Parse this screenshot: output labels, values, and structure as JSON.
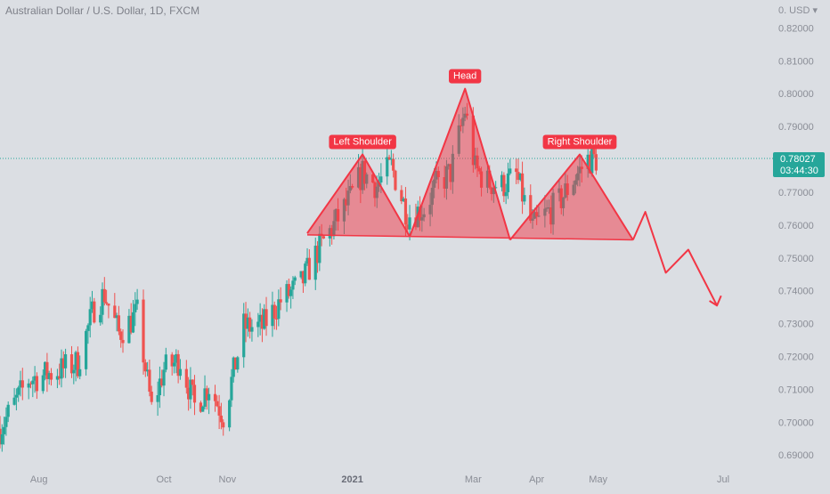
{
  "header": {
    "symbol_title": "Australian Dollar / U.S. Dollar, 1D, FXCM",
    "currency": "0. USD ▾"
  },
  "annotations": {
    "left_shoulder": "Left Shoulder",
    "head": "Head",
    "right_shoulder": "Right Shoulder"
  },
  "price_tag": {
    "price": "0.78027",
    "countdown": "03:44:30"
  },
  "colors": {
    "background": "#dbdee3",
    "up_candle": "#26a69a",
    "down_candle": "#ef5350",
    "pattern_red": "#f23645",
    "pattern_fill": "rgba(242,54,69,0.5)",
    "axis_text": "#8a8d96",
    "price_line": "#26a69a"
  },
  "chart_data": {
    "type": "candlestick",
    "title": "Australian Dollar / U.S. Dollar, 1D, FXCM",
    "ylim": [
      0.686,
      0.8285
    ],
    "y_ticks": [
      "0.82000",
      "0.81000",
      "0.80000",
      "0.79000",
      "0.78000",
      "0.77000",
      "0.76000",
      "0.75000",
      "0.74000",
      "0.73000",
      "0.72000",
      "0.71000",
      "0.70000",
      "0.69000"
    ],
    "x_ticks": [
      {
        "date": "2020-08-01",
        "label": "Aug"
      },
      {
        "date": "2020-10-01",
        "label": "Oct"
      },
      {
        "date": "2020-11-01",
        "label": "Nov"
      },
      {
        "date": "2021-01-01",
        "label": "2021"
      },
      {
        "date": "2021-03-01",
        "label": "Mar"
      },
      {
        "date": "2021-04-01",
        "label": "Apr"
      },
      {
        "date": "2021-05-01",
        "label": "May"
      },
      {
        "date": "2021-07-01",
        "label": "Jul"
      }
    ],
    "x_range": [
      "2020-07-13",
      "2021-07-21"
    ],
    "grid": false,
    "last_price": 0.78027,
    "price_trend": [
      [
        "2020-07-13",
        0.698
      ],
      [
        "2020-07-27",
        0.713
      ],
      [
        "2020-08-02",
        0.714
      ],
      [
        "2020-08-12",
        0.716
      ],
      [
        "2020-08-20",
        0.718
      ],
      [
        "2020-08-28",
        0.735
      ],
      [
        "2020-09-02",
        0.739
      ],
      [
        "2020-09-09",
        0.727
      ],
      [
        "2020-09-18",
        0.733
      ],
      [
        "2020-09-25",
        0.704
      ],
      [
        "2020-10-01",
        0.716
      ],
      [
        "2020-10-09",
        0.719
      ],
      [
        "2020-10-16",
        0.705
      ],
      [
        "2020-10-23",
        0.711
      ],
      [
        "2020-10-30",
        0.702
      ],
      [
        "2020-11-04",
        0.715
      ],
      [
        "2020-11-09",
        0.729
      ],
      [
        "2020-11-18",
        0.729
      ],
      [
        "2020-11-27",
        0.737
      ],
      [
        "2020-12-07",
        0.742
      ],
      [
        "2020-12-15",
        0.752
      ],
      [
        "2020-12-23",
        0.76
      ],
      [
        "2020-12-31",
        0.768
      ],
      [
        "2021-01-06",
        0.776
      ],
      [
        "2021-01-13",
        0.772
      ],
      [
        "2021-01-20",
        0.778
      ],
      [
        "2021-01-28",
        0.763
      ],
      [
        "2021-02-05",
        0.765
      ],
      [
        "2021-02-11",
        0.772
      ],
      [
        "2021-02-18",
        0.776
      ],
      [
        "2021-02-25",
        0.795
      ],
      [
        "2021-03-02",
        0.777
      ],
      [
        "2021-03-08",
        0.773
      ],
      [
        "2021-03-15",
        0.772
      ],
      [
        "2021-03-22",
        0.775
      ],
      [
        "2021-03-30",
        0.759
      ],
      [
        "2021-04-05",
        0.763
      ],
      [
        "2021-04-12",
        0.767
      ],
      [
        "2021-04-19",
        0.774
      ],
      [
        "2021-04-26",
        0.78
      ],
      [
        "2021-04-30",
        0.78
      ]
    ],
    "pattern": {
      "name": "Head and Shoulders",
      "left_shoulder": {
        "label": "Left Shoulder",
        "points": [
          [
            "2020-12-10",
            0.7575
          ],
          [
            "2021-01-06",
            0.7815
          ],
          [
            "2021-01-29",
            0.7565
          ]
        ]
      },
      "head": {
        "label": "Head",
        "points": [
          [
            "2021-01-29",
            0.7565
          ],
          [
            "2021-02-25",
            0.8015
          ],
          [
            "2021-03-19",
            0.7555
          ]
        ]
      },
      "right_shoulder": {
        "label": "Right Shoulder",
        "points": [
          [
            "2021-03-19",
            0.7555
          ],
          [
            "2021-04-22",
            0.7815
          ],
          [
            "2021-05-18",
            0.7555
          ]
        ]
      },
      "neckline": [
        [
          "2020-12-10",
          0.757
        ],
        [
          "2021-05-18",
          0.7555
        ]
      ],
      "projection": [
        [
          "2021-05-18",
          0.7555
        ],
        [
          "2021-05-24",
          0.764
        ],
        [
          "2021-06-03",
          0.7455
        ],
        [
          "2021-06-14",
          0.7525
        ],
        [
          "2021-06-28",
          0.7355
        ],
        [
          "2021-06-30",
          0.7385
        ]
      ]
    }
  }
}
